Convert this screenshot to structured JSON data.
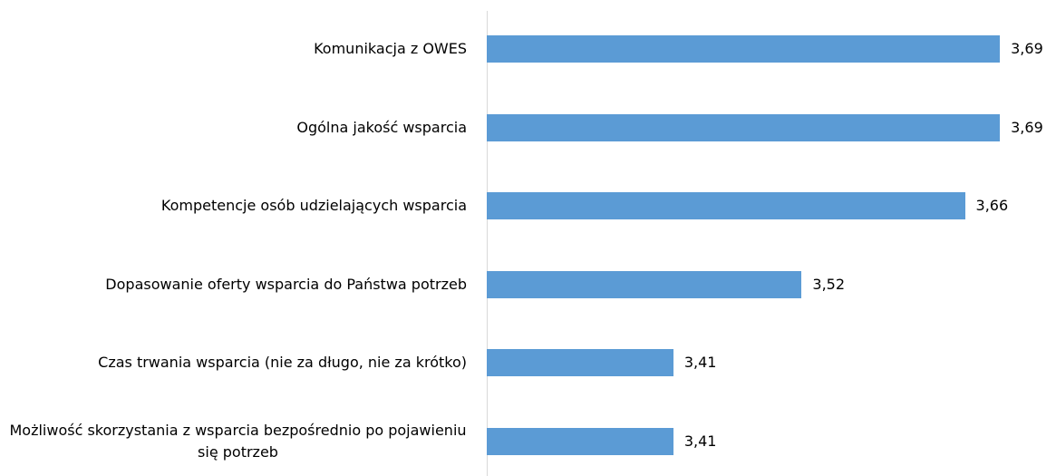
{
  "chart_data": {
    "type": "barh",
    "categories": [
      "Komunikacja z OWES",
      "Ogólna jakość wsparcia",
      "Kompetencje osób udzielających wsparcia",
      "Dopasowanie oferty wsparcia do Państwa potrzeb",
      "Czas trwania wsparcia (nie za długo, nie za krótko)",
      "Możliwość skorzystania z wsparcia bezpośrednio po pojawieniu się potrzeb"
    ],
    "values": [
      3.69,
      3.69,
      3.66,
      3.52,
      3.41,
      3.41
    ],
    "value_labels": [
      "3,69",
      "3,69",
      "3,66",
      "3,52",
      "3,41",
      "3,41"
    ],
    "color": "#5b9bd5",
    "xlim": [
      3.25,
      3.7
    ]
  }
}
